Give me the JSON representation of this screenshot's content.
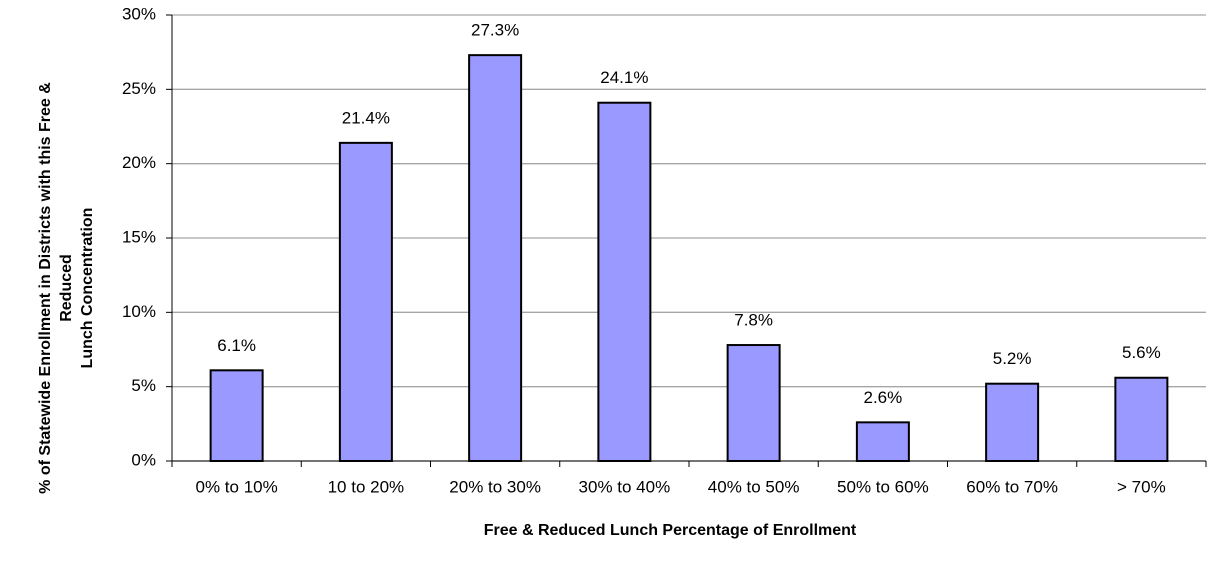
{
  "chart_data": {
    "type": "bar",
    "xlabel": "Free & Reduced Lunch Percentage of Enrollment",
    "ylabel": [
      "% of Statewide Enrollment in Districts with this Free &",
      "Reduced",
      "Lunch Concentration"
    ],
    "categories": [
      "0% to 10%",
      "10 to 20%",
      "20% to 30%",
      "30% to 40%",
      "40% to 50%",
      "50% to 60%",
      "60% to 70%",
      "> 70%"
    ],
    "values": [
      6.1,
      21.4,
      27.3,
      24.1,
      7.8,
      2.6,
      5.2,
      5.6
    ],
    "value_labels": [
      "6.1%",
      "21.4%",
      "27.3%",
      "24.1%",
      "7.8%",
      "2.6%",
      "5.2%",
      "5.6%"
    ],
    "color": "#9999ff",
    "ylim": [
      0,
      30
    ],
    "yticks": [
      {
        "value": 0,
        "label": "0%"
      },
      {
        "value": 5,
        "label": "5%"
      },
      {
        "value": 10,
        "label": "10%"
      },
      {
        "value": 15,
        "label": "15%"
      },
      {
        "value": 20,
        "label": "20%"
      },
      {
        "value": 25,
        "label": "25%"
      },
      {
        "value": 30,
        "label": "30%"
      }
    ],
    "grid": true
  }
}
